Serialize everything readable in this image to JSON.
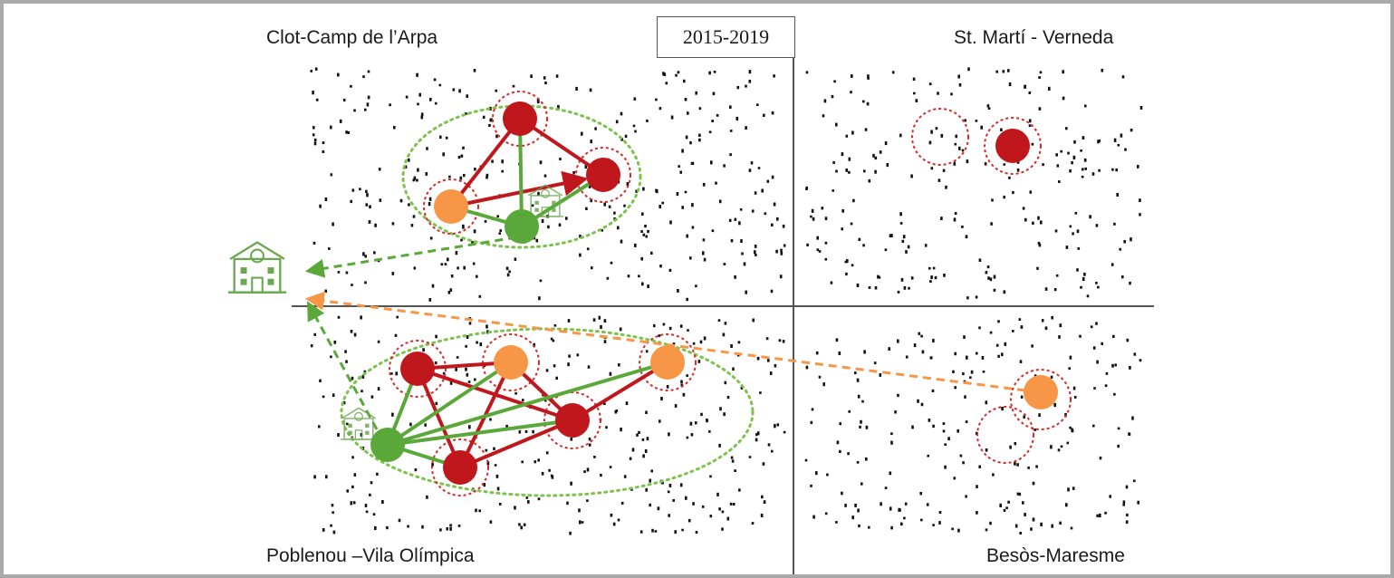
{
  "period": "2015-2019",
  "quadrants": {
    "top_left": "Clot-Camp de l’Arpa",
    "top_right": "St. Martí - Verneda",
    "bottom_left": "Poblenou –Vila Olímpica",
    "bottom_right": "Besòs-Maresme"
  },
  "colors": {
    "red": "#c0171c",
    "orange": "#f79646",
    "green": "#5aa83a",
    "dotted_ring": "#d62a2a",
    "cluster_outline": "#7cc24c",
    "school_icon": "#6aa84f",
    "axis": "#555555",
    "background_dots": "#111111"
  },
  "icons": [
    "school-building-icon"
  ]
}
